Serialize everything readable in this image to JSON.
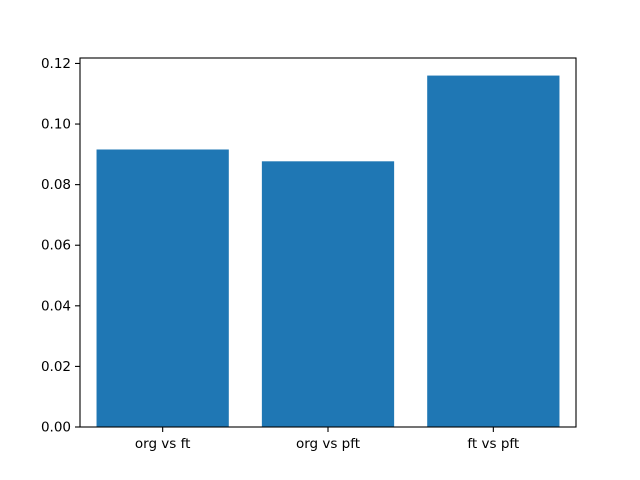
{
  "chart_data": {
    "type": "bar",
    "title": "",
    "xlabel": "",
    "ylabel": "",
    "categories": [
      "org vs ft",
      "org vs pft",
      "ft vs pft"
    ],
    "values": [
      0.0916,
      0.0877,
      0.116
    ],
    "bar_color": "#1f77b4",
    "axis_color": "#000000",
    "background_color": "#ffffff",
    "ylim": [
      0,
      0.1218
    ],
    "yticks": [
      0,
      0.02,
      0.04,
      0.06,
      0.08,
      0.1,
      0.12
    ],
    "ytick_labels": [
      "0.00",
      "0.02",
      "0.04",
      "0.06",
      "0.08",
      "0.10",
      "0.12"
    ],
    "bar_width_fraction": 0.8,
    "grid": false,
    "legend_position": "none"
  }
}
